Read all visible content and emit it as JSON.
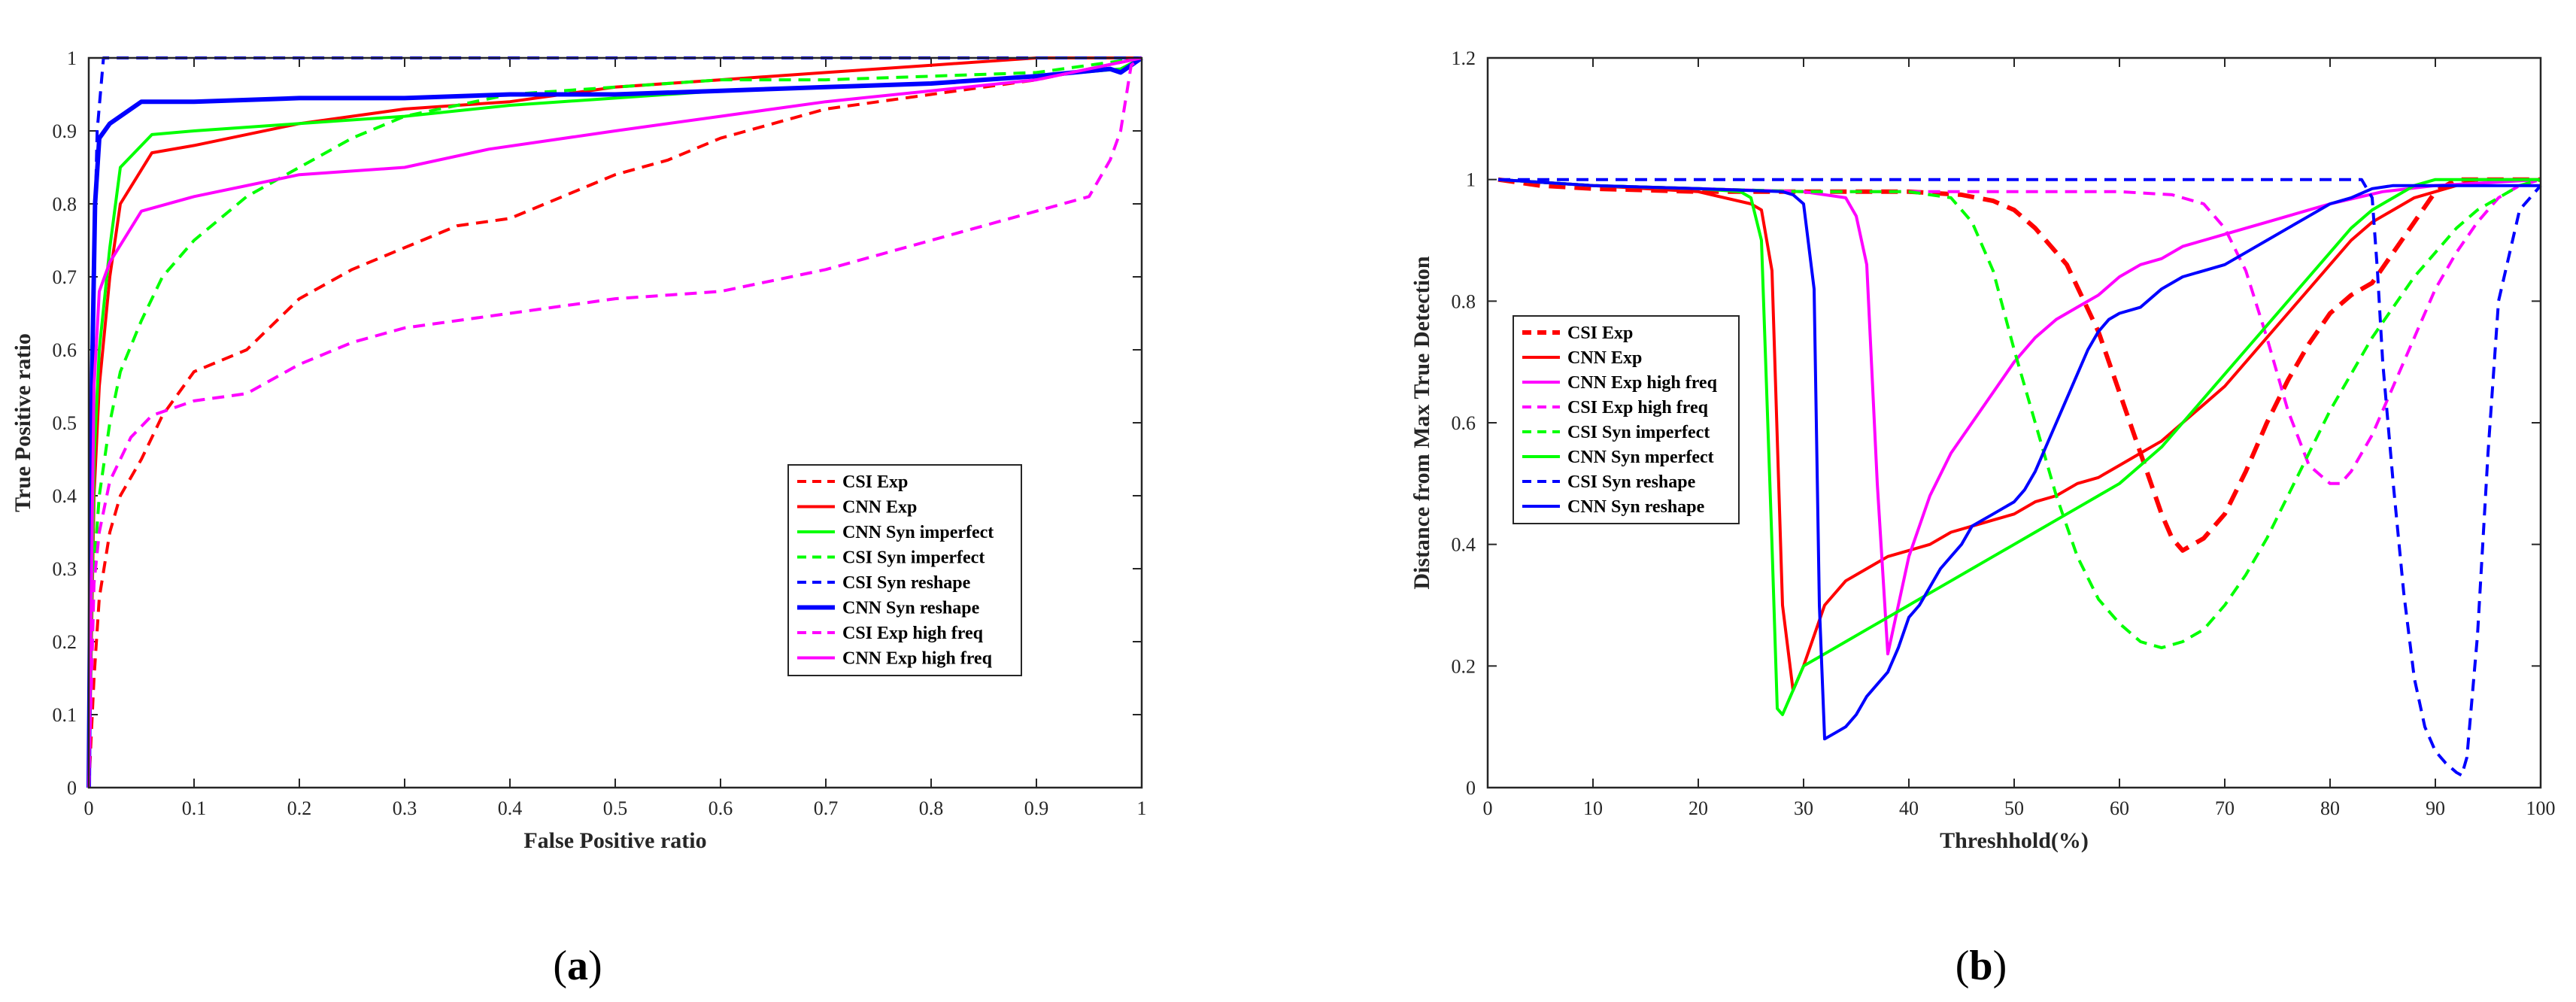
{
  "chart_data": [
    {
      "type": "line",
      "panel_label_open": "(",
      "panel_label_letter": "a",
      "panel_label_close": ")",
      "xlabel": "False Positive ratio",
      "ylabel": "True Positive ratio",
      "xlim": [
        0,
        1
      ],
      "ylim": [
        0,
        1
      ],
      "xticks": [
        "0",
        "0.1",
        "0.2",
        "0.3",
        "0.4",
        "0.5",
        "0.6",
        "0.7",
        "0.8",
        "0.9",
        "1"
      ],
      "yticks": [
        "0",
        "0.1",
        "0.2",
        "0.3",
        "0.4",
        "0.5",
        "0.6",
        "0.7",
        "0.8",
        "0.9",
        "1"
      ],
      "legend_position": "bottom-right",
      "series": [
        {
          "name": "CSI Exp",
          "color": "#ff0000",
          "dash": true,
          "thick": false,
          "x": [
            0,
            0.005,
            0.01,
            0.02,
            0.03,
            0.05,
            0.07,
            0.1,
            0.15,
            0.2,
            0.25,
            0.3,
            0.35,
            0.4,
            0.45,
            0.5,
            0.55,
            0.6,
            0.65,
            0.7,
            0.75,
            0.8,
            0.85,
            0.9,
            0.95,
            1.0
          ],
          "y": [
            0,
            0.15,
            0.26,
            0.35,
            0.4,
            0.45,
            0.51,
            0.57,
            0.6,
            0.67,
            0.71,
            0.74,
            0.77,
            0.78,
            0.81,
            0.84,
            0.86,
            0.89,
            0.91,
            0.93,
            0.94,
            0.95,
            0.96,
            0.97,
            0.985,
            1.0
          ]
        },
        {
          "name": "CNN Exp",
          "color": "#ff0000",
          "dash": false,
          "thick": false,
          "x": [
            0,
            0.005,
            0.01,
            0.02,
            0.03,
            0.06,
            0.1,
            0.2,
            0.3,
            0.4,
            0.5,
            0.6,
            0.7,
            0.8,
            0.9,
            1.0
          ],
          "y": [
            0,
            0.4,
            0.55,
            0.7,
            0.8,
            0.87,
            0.88,
            0.91,
            0.93,
            0.94,
            0.96,
            0.97,
            0.98,
            0.99,
            1.0,
            1.0
          ]
        },
        {
          "name": "CNN Syn imperfect",
          "color": "#00ff00",
          "dash": false,
          "thick": false,
          "x": [
            0,
            0.005,
            0.01,
            0.02,
            0.03,
            0.06,
            0.1,
            0.2,
            0.3,
            0.4,
            0.5,
            0.6,
            0.7,
            0.8,
            0.9,
            0.98,
            1.0
          ],
          "y": [
            0,
            0.45,
            0.6,
            0.74,
            0.85,
            0.895,
            0.9,
            0.91,
            0.92,
            0.935,
            0.945,
            0.955,
            0.96,
            0.965,
            0.975,
            0.985,
            1.0
          ]
        },
        {
          "name": "CSI Syn imperfect",
          "color": "#00ff00",
          "dash": true,
          "thick": false,
          "x": [
            0,
            0.005,
            0.01,
            0.02,
            0.03,
            0.05,
            0.07,
            0.1,
            0.15,
            0.2,
            0.25,
            0.3,
            0.35,
            0.4,
            0.5,
            0.6,
            0.7,
            0.8,
            0.9,
            1.0
          ],
          "y": [
            0,
            0.3,
            0.4,
            0.5,
            0.57,
            0.64,
            0.7,
            0.75,
            0.81,
            0.85,
            0.89,
            0.92,
            0.935,
            0.95,
            0.96,
            0.97,
            0.97,
            0.975,
            0.98,
            1.0
          ]
        },
        {
          "name": "CSI Syn reshape",
          "color": "#0000ff",
          "dash": true,
          "thick": false,
          "x": [
            0,
            0.003,
            0.008,
            0.014,
            0.02,
            0.5,
            1.0
          ],
          "y": [
            0,
            0.6,
            0.9,
            1.0,
            1.0,
            1.0,
            1.0
          ]
        },
        {
          "name": "CNN Syn reshape",
          "color": "#0000ff",
          "dash": false,
          "thick": true,
          "x": [
            0,
            0.003,
            0.006,
            0.01,
            0.02,
            0.05,
            0.1,
            0.2,
            0.3,
            0.4,
            0.5,
            0.6,
            0.7,
            0.8,
            0.9,
            0.97,
            0.98,
            1.0
          ],
          "y": [
            0,
            0.55,
            0.8,
            0.89,
            0.91,
            0.94,
            0.94,
            0.945,
            0.945,
            0.95,
            0.95,
            0.955,
            0.96,
            0.965,
            0.975,
            0.985,
            0.98,
            1.0
          ]
        },
        {
          "name": "CSI Exp high freq",
          "color": "#ff00ff",
          "dash": true,
          "thick": false,
          "x": [
            0,
            0.005,
            0.01,
            0.02,
            0.04,
            0.06,
            0.1,
            0.15,
            0.2,
            0.25,
            0.3,
            0.35,
            0.4,
            0.45,
            0.5,
            0.55,
            0.6,
            0.65,
            0.7,
            0.75,
            0.8,
            0.85,
            0.9,
            0.95,
            0.97,
            0.98,
            0.99,
            1.0
          ],
          "y": [
            0,
            0.28,
            0.35,
            0.42,
            0.48,
            0.51,
            0.53,
            0.54,
            0.58,
            0.61,
            0.63,
            0.64,
            0.65,
            0.66,
            0.67,
            0.675,
            0.68,
            0.695,
            0.71,
            0.73,
            0.75,
            0.77,
            0.79,
            0.81,
            0.86,
            0.9,
            0.99,
            1.0
          ]
        },
        {
          "name": "CNN Exp high freq",
          "color": "#ff00ff",
          "dash": false,
          "thick": false,
          "x": [
            0,
            0.005,
            0.01,
            0.02,
            0.05,
            0.1,
            0.2,
            0.3,
            0.38,
            0.5,
            0.6,
            0.7,
            0.8,
            0.9,
            1.0
          ],
          "y": [
            0,
            0.55,
            0.68,
            0.72,
            0.79,
            0.81,
            0.84,
            0.85,
            0.875,
            0.9,
            0.92,
            0.94,
            0.955,
            0.97,
            1.0
          ]
        }
      ]
    },
    {
      "type": "line",
      "panel_label_open": "(",
      "panel_label_letter": "b",
      "panel_label_close": ")",
      "xlabel": "Threshhold(%)",
      "ylabel": "Distance from Max True Detection",
      "xlim": [
        0,
        100
      ],
      "ylim": [
        0,
        1.2
      ],
      "xticks": [
        "0",
        "10",
        "20",
        "30",
        "40",
        "50",
        "60",
        "70",
        "80",
        "90",
        "100"
      ],
      "yticks": [
        "0",
        "0.2",
        "0.4",
        "0.6",
        "0.8",
        "1",
        "1.2"
      ],
      "legend_position": "middle-left",
      "series": [
        {
          "name": "CSI Exp",
          "color": "#ff0000",
          "dash": true,
          "thick": true,
          "x": [
            1,
            5,
            10,
            20,
            30,
            40,
            45,
            48,
            50,
            52,
            55,
            58,
            60,
            62,
            64,
            65,
            66,
            68,
            70,
            72,
            74,
            76,
            78,
            80,
            82,
            84,
            86,
            88,
            90,
            92,
            95,
            100
          ],
          "y": [
            1.0,
            0.99,
            0.985,
            0.98,
            0.98,
            0.98,
            0.975,
            0.965,
            0.95,
            0.92,
            0.86,
            0.75,
            0.65,
            0.55,
            0.45,
            0.41,
            0.39,
            0.41,
            0.45,
            0.52,
            0.6,
            0.67,
            0.73,
            0.78,
            0.81,
            0.83,
            0.88,
            0.93,
            0.98,
            1.0,
            1.0,
            1.0
          ]
        },
        {
          "name": "CNN Exp",
          "color": "#ff0000",
          "dash": false,
          "thick": false,
          "x": [
            1,
            10,
            20,
            25,
            26,
            27,
            28,
            29,
            30,
            32,
            34,
            36,
            38,
            40,
            42,
            44,
            46,
            48,
            50,
            52,
            54,
            56,
            58,
            60,
            62,
            64,
            66,
            68,
            70,
            72,
            74,
            76,
            78,
            80,
            82,
            84,
            86,
            88,
            90,
            92,
            94,
            100
          ],
          "y": [
            1.0,
            0.99,
            0.98,
            0.96,
            0.95,
            0.85,
            0.3,
            0.16,
            0.2,
            0.3,
            0.34,
            0.36,
            0.38,
            0.39,
            0.4,
            0.42,
            0.43,
            0.44,
            0.45,
            0.47,
            0.48,
            0.5,
            0.51,
            0.53,
            0.55,
            0.57,
            0.6,
            0.63,
            0.66,
            0.7,
            0.74,
            0.78,
            0.82,
            0.86,
            0.9,
            0.93,
            0.95,
            0.97,
            0.98,
            0.99,
            1.0,
            1.0
          ]
        },
        {
          "name": "CNN Exp high freq",
          "color": "#ff00ff",
          "dash": false,
          "thick": false,
          "x": [
            1,
            10,
            20,
            30,
            34,
            35,
            36,
            37,
            38,
            39,
            40,
            42,
            44,
            46,
            48,
            50,
            52,
            54,
            56,
            58,
            60,
            62,
            64,
            66,
            68,
            70,
            72,
            74,
            76,
            78,
            80,
            85,
            90,
            95,
            100
          ],
          "y": [
            1.0,
            0.99,
            0.985,
            0.98,
            0.97,
            0.94,
            0.86,
            0.5,
            0.22,
            0.3,
            0.38,
            0.48,
            0.55,
            0.6,
            0.65,
            0.7,
            0.74,
            0.77,
            0.79,
            0.81,
            0.84,
            0.86,
            0.87,
            0.89,
            0.9,
            0.91,
            0.92,
            0.93,
            0.94,
            0.95,
            0.96,
            0.98,
            0.99,
            0.995,
            1.0
          ]
        },
        {
          "name": "CSI Exp high freq",
          "color": "#ff00ff",
          "dash": true,
          "thick": false,
          "x": [
            1,
            10,
            20,
            30,
            40,
            50,
            60,
            65,
            68,
            70,
            72,
            74,
            76,
            78,
            80,
            81,
            82,
            84,
            86,
            88,
            90,
            92,
            94,
            96,
            98,
            100
          ],
          "y": [
            1.0,
            0.99,
            0.985,
            0.98,
            0.98,
            0.98,
            0.98,
            0.975,
            0.96,
            0.92,
            0.85,
            0.74,
            0.62,
            0.53,
            0.5,
            0.5,
            0.52,
            0.58,
            0.66,
            0.74,
            0.82,
            0.88,
            0.93,
            0.97,
            0.99,
            1.0
          ]
        },
        {
          "name": "CSI Syn imperfect",
          "color": "#00ff00",
          "dash": true,
          "thick": false,
          "x": [
            1,
            10,
            20,
            30,
            40,
            44,
            46,
            48,
            50,
            52,
            54,
            56,
            58,
            60,
            62,
            64,
            66,
            68,
            70,
            72,
            74,
            76,
            78,
            80,
            82,
            84,
            86,
            88,
            90,
            92,
            94,
            96,
            98,
            100
          ],
          "y": [
            1.0,
            0.99,
            0.985,
            0.98,
            0.98,
            0.97,
            0.93,
            0.85,
            0.72,
            0.6,
            0.48,
            0.38,
            0.31,
            0.27,
            0.24,
            0.23,
            0.24,
            0.26,
            0.3,
            0.35,
            0.41,
            0.48,
            0.55,
            0.62,
            0.68,
            0.74,
            0.79,
            0.84,
            0.88,
            0.92,
            0.95,
            0.97,
            0.99,
            1.0
          ]
        },
        {
          "name": "CNN Syn mperfect",
          "color": "#00ff00",
          "dash": false,
          "thick": false,
          "x": [
            1,
            10,
            20,
            24,
            25,
            26,
            27,
            27.5,
            28,
            29,
            30,
            32,
            34,
            36,
            38,
            40,
            42,
            44,
            46,
            48,
            50,
            52,
            54,
            56,
            58,
            60,
            62,
            64,
            66,
            68,
            70,
            72,
            74,
            76,
            78,
            80,
            82,
            84,
            86,
            88,
            90,
            95,
            100
          ],
          "y": [
            1.0,
            0.99,
            0.985,
            0.98,
            0.97,
            0.9,
            0.4,
            0.13,
            0.12,
            0.16,
            0.2,
            0.22,
            0.24,
            0.26,
            0.28,
            0.3,
            0.32,
            0.34,
            0.36,
            0.38,
            0.4,
            0.42,
            0.44,
            0.46,
            0.48,
            0.5,
            0.53,
            0.56,
            0.6,
            0.64,
            0.68,
            0.72,
            0.76,
            0.8,
            0.84,
            0.88,
            0.92,
            0.95,
            0.97,
            0.99,
            1.0,
            1.0,
            1.0
          ]
        },
        {
          "name": "CSI Syn reshape",
          "color": "#0000ff",
          "dash": true,
          "thick": false,
          "x": [
            1,
            10,
            20,
            30,
            40,
            50,
            60,
            70,
            80,
            82,
            83,
            84,
            84.5,
            85,
            86,
            87,
            88,
            89,
            90,
            91,
            92,
            92.5,
            93,
            94,
            95,
            96,
            98,
            100
          ],
          "y": [
            1.0,
            1.0,
            1.0,
            1.0,
            1.0,
            1.0,
            1.0,
            1.0,
            1.0,
            1.0,
            1.0,
            0.97,
            0.85,
            0.7,
            0.5,
            0.32,
            0.18,
            0.1,
            0.06,
            0.04,
            0.025,
            0.02,
            0.05,
            0.25,
            0.55,
            0.8,
            0.95,
            0.99
          ]
        },
        {
          "name": "CNN Syn reshape",
          "color": "#0000ff",
          "dash": false,
          "thick": false,
          "x": [
            1,
            10,
            20,
            28,
            29,
            30,
            31,
            31.5,
            32,
            33,
            34,
            35,
            36,
            37,
            38,
            39,
            40,
            41,
            42,
            43,
            44,
            45,
            46,
            47,
            48,
            49,
            50,
            51,
            52,
            53,
            54,
            55,
            56,
            57,
            58,
            59,
            60,
            62,
            64,
            66,
            68,
            70,
            72,
            74,
            76,
            78,
            80,
            82,
            84,
            86,
            88,
            90,
            95,
            100
          ],
          "y": [
            1.0,
            0.99,
            0.985,
            0.98,
            0.975,
            0.96,
            0.82,
            0.3,
            0.08,
            0.09,
            0.1,
            0.12,
            0.15,
            0.17,
            0.19,
            0.23,
            0.28,
            0.3,
            0.33,
            0.36,
            0.38,
            0.4,
            0.43,
            0.44,
            0.45,
            0.46,
            0.47,
            0.49,
            0.52,
            0.56,
            0.6,
            0.64,
            0.68,
            0.72,
            0.75,
            0.77,
            0.78,
            0.79,
            0.82,
            0.84,
            0.85,
            0.86,
            0.88,
            0.9,
            0.92,
            0.94,
            0.96,
            0.97,
            0.985,
            0.99,
            0.99,
            0.99,
            0.99,
            0.99
          ]
        }
      ]
    }
  ]
}
